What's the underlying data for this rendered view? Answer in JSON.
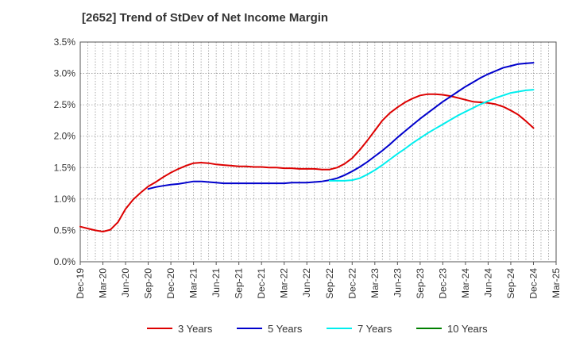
{
  "chart_data": {
    "type": "line",
    "title": "[2652]  Trend of StDev of Net Income Margin",
    "xlabel": "",
    "ylabel": "",
    "categories": [
      "Dec-19",
      "Mar-20",
      "Jun-20",
      "Sep-20",
      "Dec-20",
      "Mar-21",
      "Jun-21",
      "Sep-21",
      "Dec-21",
      "Mar-22",
      "Jun-22",
      "Sep-22",
      "Dec-22",
      "Mar-23",
      "Jun-23",
      "Sep-23",
      "Dec-23",
      "Mar-24",
      "Jun-24",
      "Sep-24",
      "Dec-24",
      "Mar-25"
    ],
    "y_tick_labels": [
      "0.0%",
      "0.5%",
      "1.0%",
      "1.5%",
      "2.0%",
      "2.5%",
      "3.0%",
      "3.5%"
    ],
    "ylim": [
      0,
      3.5
    ],
    "y_unit": "%",
    "grid": true,
    "grid_style": "dotted",
    "legend_position": "bottom",
    "series": [
      {
        "name": "3 Years",
        "color": "#dd0000",
        "x": [
          "Dec-19",
          "Jan-20",
          "Feb-20",
          "Mar-20",
          "Apr-20",
          "May-20",
          "Jun-20",
          "Jul-20",
          "Aug-20",
          "Sep-20",
          "Oct-20",
          "Nov-20",
          "Dec-20",
          "Jan-21",
          "Feb-21",
          "Mar-21",
          "Apr-21",
          "May-21",
          "Jun-21",
          "Jul-21",
          "Aug-21",
          "Sep-21",
          "Oct-21",
          "Nov-21",
          "Dec-21",
          "Jan-22",
          "Feb-22",
          "Mar-22",
          "Apr-22",
          "May-22",
          "Jun-22",
          "Jul-22",
          "Aug-22",
          "Sep-22",
          "Oct-22",
          "Nov-22",
          "Dec-22",
          "Jan-23",
          "Feb-23",
          "Mar-23",
          "Apr-23",
          "May-23",
          "Jun-23",
          "Jul-23",
          "Aug-23",
          "Sep-23",
          "Oct-23",
          "Nov-23",
          "Dec-23",
          "Jan-24",
          "Feb-24",
          "Mar-24",
          "Apr-24",
          "May-24",
          "Jun-24",
          "Jul-24",
          "Aug-24",
          "Sep-24",
          "Oct-24",
          "Nov-24",
          "Dec-24"
        ],
        "values": [
          0.56,
          0.53,
          0.5,
          0.48,
          0.51,
          0.63,
          0.84,
          0.99,
          1.1,
          1.2,
          1.27,
          1.35,
          1.42,
          1.48,
          1.53,
          1.57,
          1.58,
          1.57,
          1.55,
          1.54,
          1.53,
          1.52,
          1.52,
          1.51,
          1.51,
          1.5,
          1.5,
          1.49,
          1.49,
          1.48,
          1.48,
          1.48,
          1.47,
          1.47,
          1.5,
          1.56,
          1.65,
          1.78,
          1.93,
          2.09,
          2.25,
          2.37,
          2.46,
          2.54,
          2.6,
          2.65,
          2.67,
          2.67,
          2.66,
          2.64,
          2.61,
          2.58,
          2.55,
          2.54,
          2.53,
          2.51,
          2.47,
          2.41,
          2.34,
          2.24,
          2.13
        ]
      },
      {
        "name": "5 Years",
        "color": "#0000cc",
        "x": [
          "Sep-20",
          "Oct-20",
          "Nov-20",
          "Dec-20",
          "Jan-21",
          "Feb-21",
          "Mar-21",
          "Apr-21",
          "May-21",
          "Jun-21",
          "Jul-21",
          "Aug-21",
          "Sep-21",
          "Oct-21",
          "Nov-21",
          "Dec-21",
          "Jan-22",
          "Feb-22",
          "Mar-22",
          "Apr-22",
          "May-22",
          "Jun-22",
          "Jul-22",
          "Aug-22",
          "Sep-22",
          "Oct-22",
          "Nov-22",
          "Dec-22",
          "Jan-23",
          "Feb-23",
          "Mar-23",
          "Apr-23",
          "May-23",
          "Jun-23",
          "Jul-23",
          "Aug-23",
          "Sep-23",
          "Oct-23",
          "Nov-23",
          "Dec-23",
          "Jan-24",
          "Feb-24",
          "Mar-24",
          "Apr-24",
          "May-24",
          "Jun-24",
          "Jul-24",
          "Aug-24",
          "Sep-24",
          "Oct-24",
          "Nov-24",
          "Dec-24"
        ],
        "values": [
          1.16,
          1.19,
          1.21,
          1.23,
          1.24,
          1.26,
          1.28,
          1.28,
          1.27,
          1.26,
          1.25,
          1.25,
          1.25,
          1.25,
          1.25,
          1.25,
          1.25,
          1.25,
          1.25,
          1.26,
          1.26,
          1.26,
          1.27,
          1.28,
          1.3,
          1.33,
          1.38,
          1.44,
          1.51,
          1.59,
          1.68,
          1.77,
          1.87,
          1.98,
          2.08,
          2.18,
          2.28,
          2.37,
          2.46,
          2.55,
          2.63,
          2.71,
          2.79,
          2.86,
          2.93,
          2.99,
          3.04,
          3.09,
          3.12,
          3.15,
          3.16,
          3.17
        ]
      },
      {
        "name": "7 Years",
        "color": "#00eeee",
        "x": [
          "Sep-22",
          "Oct-22",
          "Nov-22",
          "Dec-22",
          "Jan-23",
          "Feb-23",
          "Mar-23",
          "Apr-23",
          "May-23",
          "Jun-23",
          "Jul-23",
          "Aug-23",
          "Sep-23",
          "Oct-23",
          "Nov-23",
          "Dec-23",
          "Jan-24",
          "Feb-24",
          "Mar-24",
          "Apr-24",
          "May-24",
          "Jun-24",
          "Jul-24",
          "Aug-24",
          "Sep-24",
          "Oct-24",
          "Nov-24",
          "Dec-24"
        ],
        "values": [
          1.29,
          1.29,
          1.29,
          1.3,
          1.33,
          1.39,
          1.46,
          1.54,
          1.63,
          1.72,
          1.8,
          1.89,
          1.97,
          2.05,
          2.12,
          2.19,
          2.26,
          2.33,
          2.39,
          2.45,
          2.51,
          2.56,
          2.61,
          2.65,
          2.69,
          2.71,
          2.73,
          2.74
        ]
      },
      {
        "name": "10 Years",
        "color": "#008000",
        "x": [],
        "values": []
      }
    ]
  }
}
